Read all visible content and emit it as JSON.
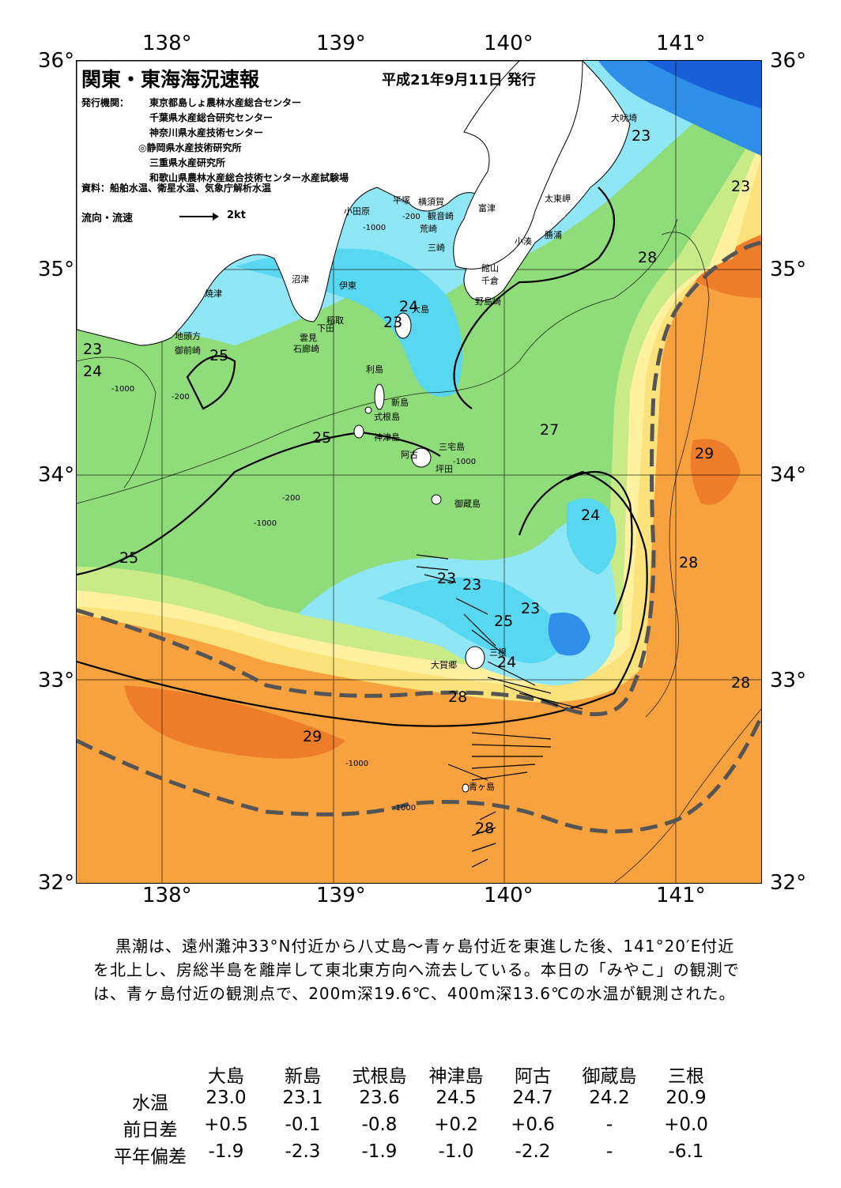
{
  "axes": {
    "lon_labels": [
      "138°",
      "139°",
      "140°",
      "141°"
    ],
    "lat_labels": [
      "36°",
      "35°",
      "34°",
      "33°",
      "32°"
    ]
  },
  "header": {
    "title": "関東・東海海況速報",
    "issue_date": "平成21年9月11日 発行",
    "issuer_label": "発行機関：",
    "issuers": [
      "東京都島しょ農林水産総合センター",
      "千葉県水産総合研究センター",
      "神奈川県水産技術センター",
      "◎静岡県水産技術研究所",
      "三重県水産研究所",
      "和歌山県農林水産総合技術センター水産試験場"
    ],
    "source": "資料：船舶水温、衛星水温、気象庁解析水温",
    "flow_legend": "流向・流速",
    "flow_unit": "2kt"
  },
  "place_names": [
    "犬吠埼",
    "太東岬",
    "勝浦",
    "小湊",
    "富津",
    "館山",
    "千倉",
    "野島崎",
    "横須賀",
    "観音崎",
    "荒崎",
    "三崎",
    "平塚",
    "小田原",
    "沼津",
    "伊東",
    "稲取",
    "下田",
    "雲見",
    "石廊崎",
    "焼津",
    "地頭方",
    "御前崎",
    "大島",
    "利島",
    "新島",
    "式根島",
    "神津島",
    "阿古",
    "三宅島",
    "坪田",
    "御蔵島",
    "三根",
    "大賀郷",
    "青ヶ島"
  ],
  "temperature_labels": [
    {
      "text": "23",
      "where": "犬吠埼沖"
    },
    {
      "text": "23",
      "where": "房総沖"
    },
    {
      "text": "28",
      "where": "勝浦南東"
    },
    {
      "text": "24",
      "where": "大島"
    },
    {
      "text": "23",
      "where": "大島南"
    },
    {
      "text": "23",
      "where": "御前崎西"
    },
    {
      "text": "24",
      "where": "御前崎西南"
    },
    {
      "text": "25",
      "where": "御前崎沖"
    },
    {
      "text": "25",
      "where": "神津島西"
    },
    {
      "text": "27",
      "where": "三宅島東"
    },
    {
      "text": "29",
      "where": "141°E 34°N"
    },
    {
      "text": "24",
      "where": "御蔵島東"
    },
    {
      "text": "25",
      "where": "遠州灘沖"
    },
    {
      "text": "28",
      "where": "141°E 33.5°N"
    },
    {
      "text": "23",
      "where": "八丈島北"
    },
    {
      "text": "23",
      "where": "八丈島北"
    },
    {
      "text": "23",
      "where": "八丈島北東"
    },
    {
      "text": "25",
      "where": "八丈島"
    },
    {
      "text": "24",
      "where": "八丈島東"
    },
    {
      "text": "28",
      "where": "八丈島南"
    },
    {
      "text": "28",
      "where": "東端"
    },
    {
      "text": "29",
      "where": "紀伊沖"
    },
    {
      "text": "28",
      "where": "青ヶ島南"
    }
  ],
  "depth_labels": [
    "-200",
    "-1000"
  ],
  "commentary": "黒潮は、遠州灘沖33°N付近から八丈島～青ヶ島付近を東進した後、141°20′E付近を北上し、房総半島を離岸して東北東方向へ流去している。本日の「みやこ」の観測では、青ヶ島付近の観測点で、200m深19.6℃、400m深13.6℃の水温が観測された。",
  "table": {
    "columns": [
      "大島",
      "新島",
      "式根島",
      "神津島",
      "阿古",
      "御蔵島",
      "三根"
    ],
    "rows": [
      {
        "label": "水温",
        "values": [
          "23.0",
          "23.1",
          "23.6",
          "24.5",
          "24.7",
          "24.2",
          "20.9"
        ]
      },
      {
        "label": "前日差",
        "values": [
          "+0.5",
          "-0.1",
          "-0.8",
          "+0.2",
          "+0.6",
          "-",
          "+0.0"
        ]
      },
      {
        "label": "平年偏差",
        "values": [
          "-1.9",
          "-2.3",
          "-1.9",
          "-1.0",
          "-2.2",
          "-",
          "-6.1"
        ]
      }
    ]
  },
  "colors": {
    "warm_orange": "#f7a23f",
    "orange_dark": "#ee7d2a",
    "yellow": "#fbe27a",
    "light_yellow": "#fff1a0",
    "green": "#8fdc7a",
    "light_green": "#c8eb87",
    "cyan": "#58d7f0",
    "light_cyan": "#8fe6f5",
    "blue": "#2f8fe8",
    "deep_blue": "#1760d8",
    "kuroshio_axis": "#555555",
    "land": "#ffffff"
  }
}
